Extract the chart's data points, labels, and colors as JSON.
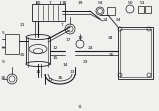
{
  "background_color": "#f0f0ee",
  "line_color": "#1a1a1a",
  "light_line": "#555555",
  "figsize": [
    1.6,
    1.12
  ],
  "dpi": 100
}
